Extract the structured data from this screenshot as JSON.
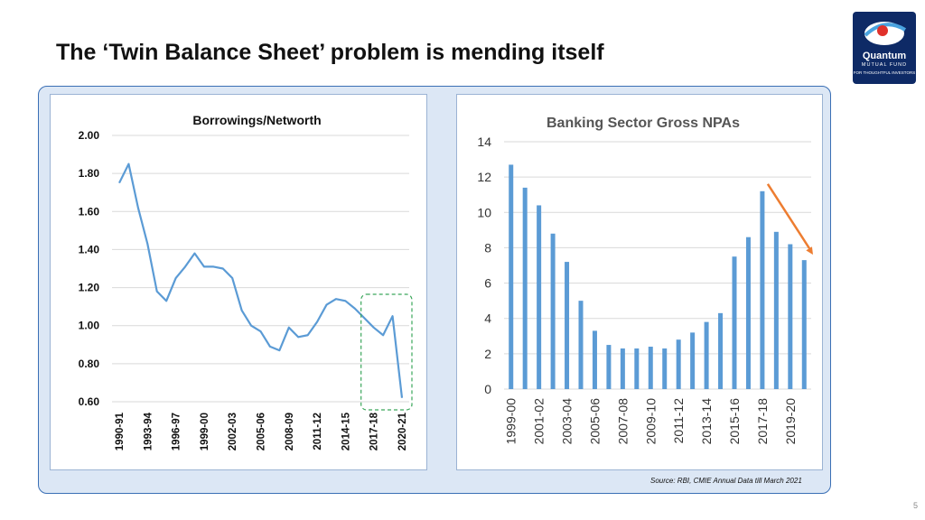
{
  "slide": {
    "title": "The ‘Twin Balance Sheet’ problem is mending itself",
    "source": "Source: RBI, CMIE Annual Data till March 2021",
    "page_number": "5",
    "logo": {
      "name": "Quantum",
      "line2": "MUTUAL FUND",
      "tagline": "FOR THOUGHTFUL INVESTORS"
    }
  },
  "colors": {
    "line": "#5b9bd5",
    "bar": "#5b9bd5",
    "arrow": "#ed7d31",
    "highlight_box": "#3aa65a",
    "outer_border": "#3a6fb5",
    "outer_fill": "#dce7f5"
  },
  "chart_data": [
    {
      "type": "line",
      "title": "Borrowings/Networth",
      "x": [
        "1990-91",
        "1991-92",
        "1992-93",
        "1993-94",
        "1994-95",
        "1995-96",
        "1996-97",
        "1997-98",
        "1998-99",
        "1999-00",
        "2000-01",
        "2001-02",
        "2002-03",
        "2003-04",
        "2004-05",
        "2005-06",
        "2006-07",
        "2007-08",
        "2008-09",
        "2009-10",
        "2010-11",
        "2011-12",
        "2012-13",
        "2013-14",
        "2014-15",
        "2015-16",
        "2016-17",
        "2017-18",
        "2018-19",
        "2019-20",
        "2020-21"
      ],
      "x_tick_labels": [
        "1990-91",
        "1993-94",
        "1996-97",
        "1999-00",
        "2002-03",
        "2005-06",
        "2008-09",
        "2011-12",
        "2014-15",
        "2017-18",
        "2020-21"
      ],
      "series": [
        {
          "values": [
            1.75,
            1.85,
            1.62,
            1.43,
            1.18,
            1.13,
            1.25,
            1.31,
            1.38,
            1.31,
            1.31,
            1.3,
            1.25,
            1.08,
            1.0,
            0.97,
            0.89,
            0.87,
            0.99,
            0.94,
            0.95,
            1.02,
            1.11,
            1.14,
            1.13,
            1.09,
            1.04,
            0.99,
            0.95,
            1.05,
            0.62
          ]
        }
      ],
      "ylim": [
        0.6,
        2.0
      ],
      "y_ticks": [
        "0.60",
        "0.80",
        "1.00",
        "1.20",
        "1.40",
        "1.60",
        "1.80",
        "2.00"
      ],
      "grid": true,
      "highlight": "dashed box around 2017-18 to 2020-21"
    },
    {
      "type": "bar",
      "title": "Banking Sector Gross NPAs",
      "categories": [
        "1999-00",
        "2000-01",
        "2001-02",
        "2002-03",
        "2003-04",
        "2004-05",
        "2005-06",
        "2006-07",
        "2007-08",
        "2008-09",
        "2009-10",
        "2010-11",
        "2011-12",
        "2012-13",
        "2013-14",
        "2014-15",
        "2015-16",
        "2016-17",
        "2017-18",
        "2018-19",
        "2019-20",
        "2020-21"
      ],
      "x_tick_labels": [
        "1999-00",
        "2001-02",
        "2003-04",
        "2005-06",
        "2007-08",
        "2009-10",
        "2011-12",
        "2013-14",
        "2015-16",
        "2017-18",
        "2019-20"
      ],
      "values": [
        12.7,
        11.4,
        10.4,
        8.8,
        7.2,
        5.0,
        3.3,
        2.5,
        2.3,
        2.3,
        2.4,
        2.3,
        2.8,
        3.2,
        3.8,
        4.3,
        7.5,
        8.6,
        11.2,
        8.9,
        8.2,
        7.3
      ],
      "ylim": [
        0,
        14
      ],
      "y_ticks": [
        "0",
        "2",
        "4",
        "6",
        "8",
        "10",
        "12",
        "14"
      ],
      "grid": true,
      "annotation": "downward arrow from 2017-18 to 2020-21"
    }
  ]
}
